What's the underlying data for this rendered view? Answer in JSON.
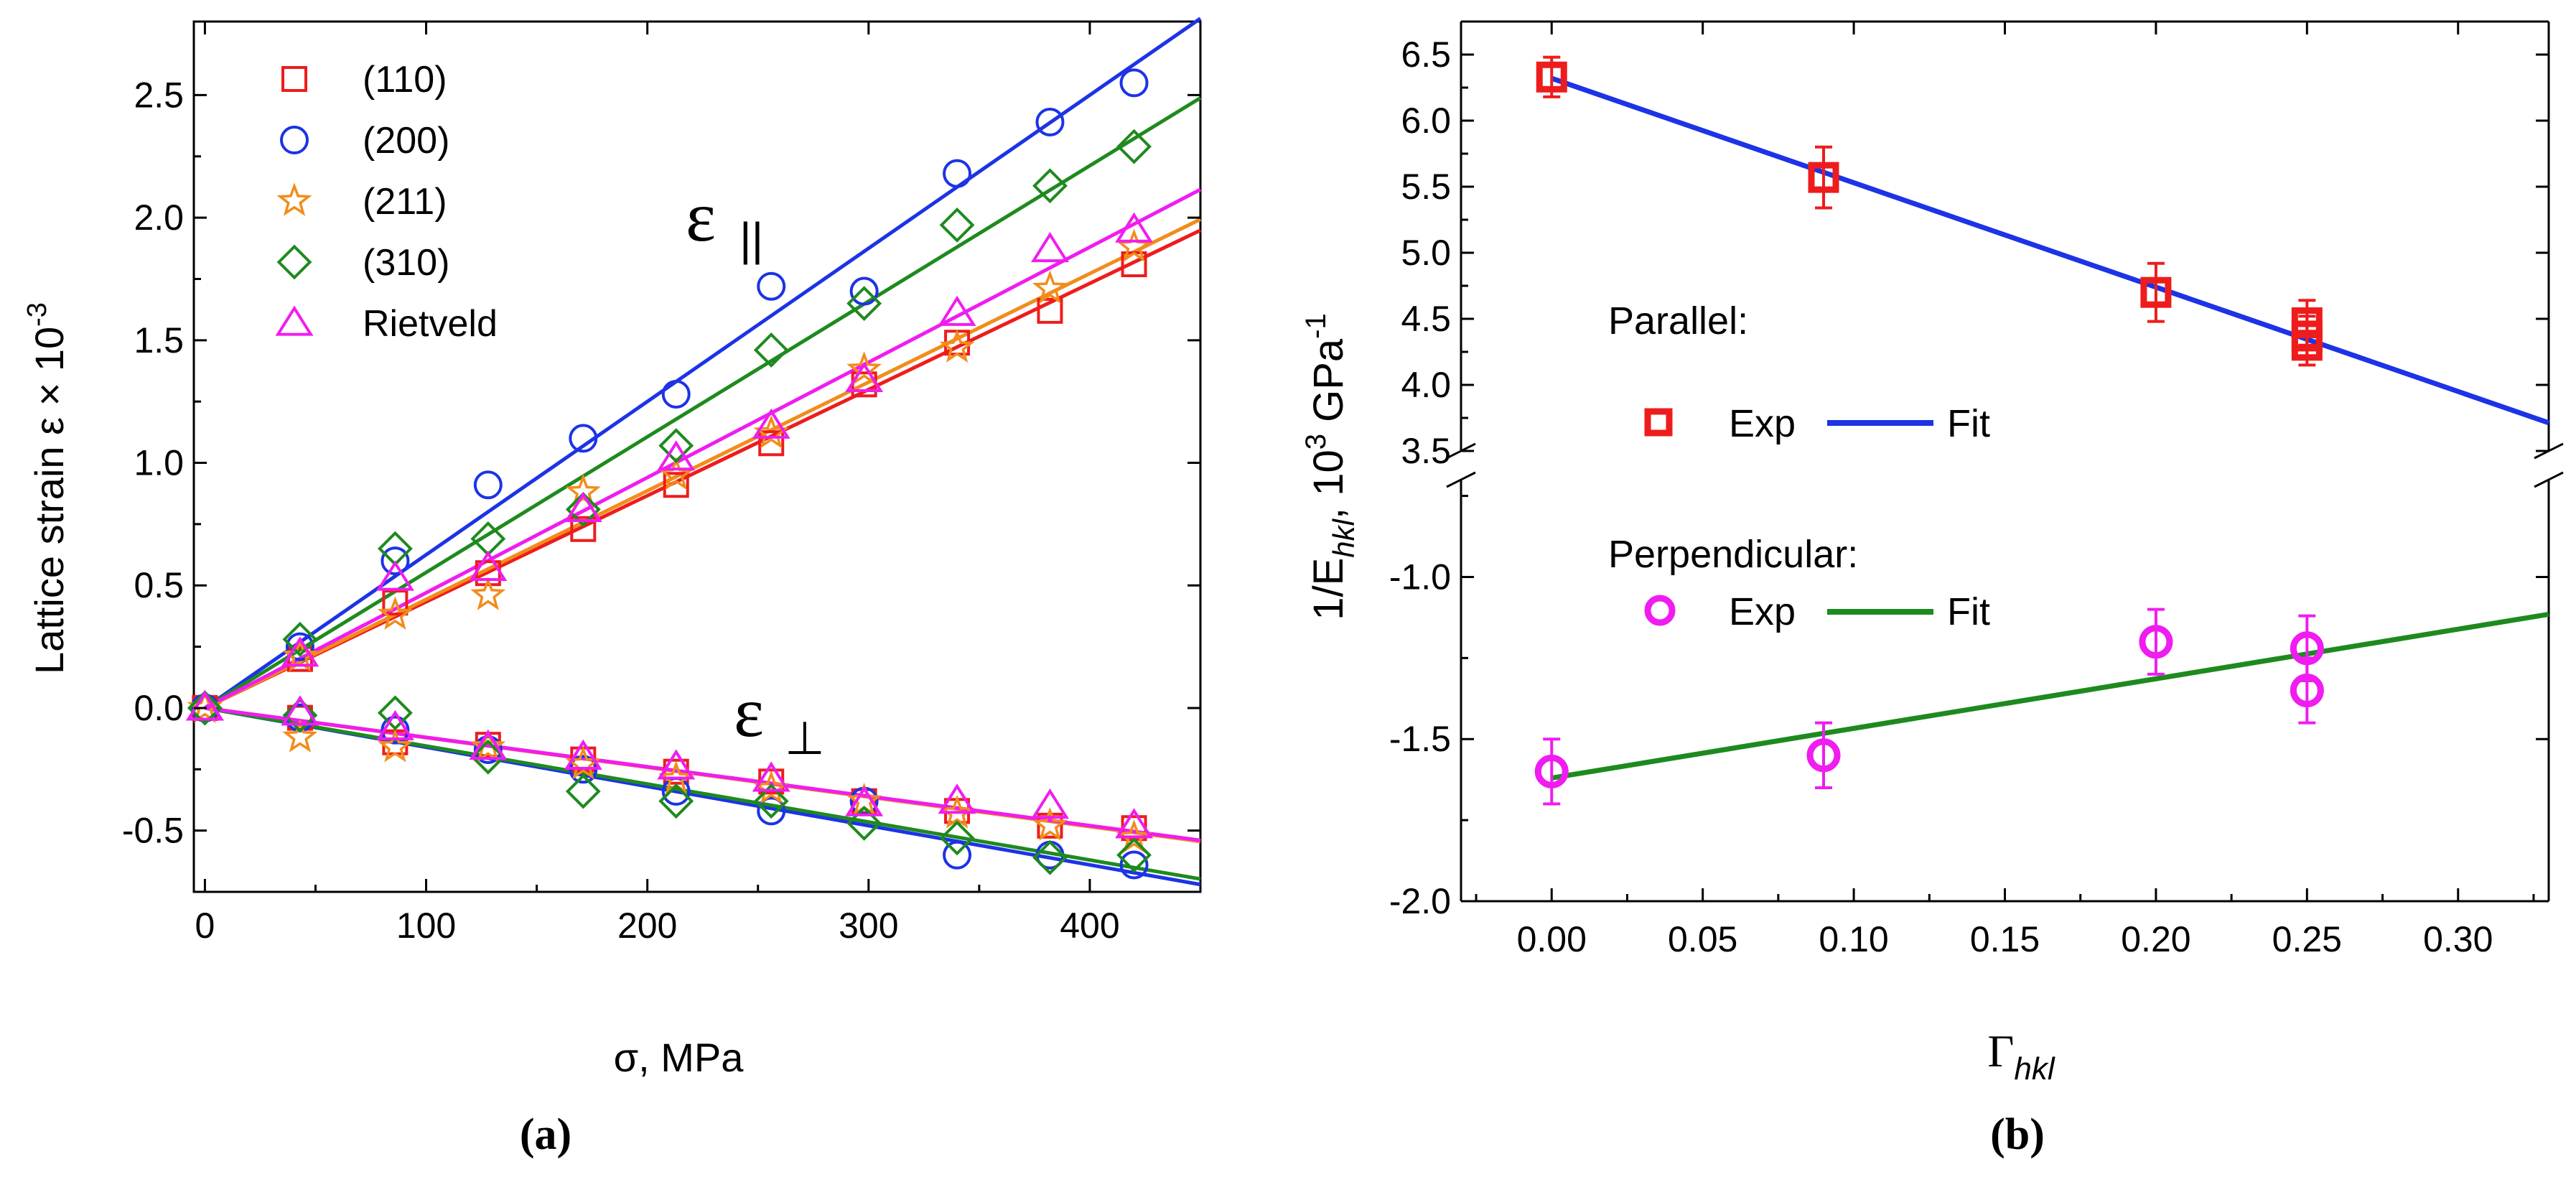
{
  "chart_data": [
    {
      "panel": "a",
      "type": "scatter",
      "panel_label": "(a)",
      "xlabel": "σ, MPa",
      "ylabel": "Lattice strain ε × 10",
      "ylabel_exp": "-3",
      "xlim": [
        -5,
        450
      ],
      "ylim": [
        -0.75,
        2.8
      ],
      "xticks": [
        0,
        100,
        200,
        300,
        400
      ],
      "xtick_labels": [
        "0",
        "100",
        "200",
        "300",
        "400"
      ],
      "yticks": [
        -0.5,
        0.0,
        0.5,
        1.0,
        1.5,
        2.0,
        2.5
      ],
      "ytick_labels": [
        "-0.5",
        "0.0",
        "0.5",
        "1.0",
        "1.5",
        "2.0",
        "2.5"
      ],
      "annotations": {
        "parallel_symbol": "ε",
        "parallel_sub": "||",
        "perp_symbol": "ε",
        "perp_sub": "⊥"
      },
      "x": [
        0,
        43,
        86,
        128,
        171,
        213,
        256,
        298,
        340,
        382,
        420
      ],
      "series": [
        {
          "name": "(110)",
          "marker": "square",
          "color": "#ee1c1c",
          "parallel": [
            0.0,
            0.2,
            0.43,
            0.55,
            0.73,
            0.91,
            1.08,
            1.32,
            1.49,
            1.62,
            1.81
          ],
          "perpendicular": [
            0.0,
            -0.04,
            -0.14,
            -0.15,
            -0.21,
            -0.26,
            -0.3,
            -0.38,
            -0.42,
            -0.48,
            -0.49
          ],
          "fit_parallel_slope": 0.00433,
          "fit_perp_slope": -0.0012
        },
        {
          "name": "(200)",
          "marker": "circle",
          "color": "#1c33e6",
          "parallel": [
            0.0,
            0.25,
            0.6,
            0.91,
            1.1,
            1.28,
            1.72,
            1.7,
            2.18,
            2.39,
            2.55
          ],
          "perpendicular": [
            0.0,
            -0.04,
            -0.09,
            -0.17,
            -0.25,
            -0.34,
            -0.42,
            -0.38,
            -0.6,
            -0.6,
            -0.64
          ],
          "fit_parallel_slope": 0.00625,
          "fit_perp_slope": -0.0016
        },
        {
          "name": "(211)",
          "marker": "star",
          "color": "#f28c1a",
          "parallel": [
            0.0,
            0.21,
            0.38,
            0.46,
            0.88,
            0.95,
            1.12,
            1.38,
            1.47,
            1.71,
            1.88
          ],
          "perpendicular": [
            0.0,
            -0.12,
            -0.16,
            -0.16,
            -0.23,
            -0.29,
            -0.33,
            -0.38,
            -0.43,
            -0.48,
            -0.53
          ],
          "fit_parallel_slope": 0.00443,
          "fit_perp_slope": -0.00121
        },
        {
          "name": "(310)",
          "marker": "diamond",
          "color": "#1e8a1e",
          "parallel": [
            0.0,
            0.28,
            0.65,
            0.69,
            0.81,
            1.07,
            1.46,
            1.65,
            1.97,
            2.13,
            2.29
          ],
          "perpendicular": [
            0.0,
            -0.03,
            -0.02,
            -0.2,
            -0.34,
            -0.38,
            -0.38,
            -0.47,
            -0.53,
            -0.61,
            -0.6
          ],
          "fit_parallel_slope": 0.00553,
          "fit_perp_slope": -0.00155
        },
        {
          "name": "Rietveld",
          "marker": "triangle",
          "color": "#f01cf0",
          "parallel": [
            0.0,
            0.22,
            0.53,
            0.57,
            0.81,
            1.02,
            1.15,
            1.34,
            1.61,
            1.87,
            1.95
          ],
          "perpendicular": [
            0.0,
            -0.02,
            -0.08,
            -0.16,
            -0.2,
            -0.24,
            -0.29,
            -0.39,
            -0.38,
            -0.4,
            -0.48
          ],
          "fit_parallel_slope": 0.0047,
          "fit_perp_slope": -0.0012
        }
      ]
    },
    {
      "panel": "b",
      "type": "scatter",
      "panel_label": "(b)",
      "xlabel": "Γ",
      "xlabel_sub": "hkl",
      "ylabel_prefix": "1/E",
      "ylabel_sub": "hkl",
      "ylabel_mid": ", 10",
      "ylabel_sup1": "3",
      "ylabel_unit": " GPa",
      "ylabel_sup2": "-1",
      "xlim": [
        -0.03,
        0.33
      ],
      "xticks": [
        0.0,
        0.05,
        0.1,
        0.15,
        0.2,
        0.25,
        0.3
      ],
      "xtick_labels": [
        "0.00",
        "0.05",
        "0.10",
        "0.15",
        "0.20",
        "0.25",
        "0.30"
      ],
      "upper_ylim": [
        3.5,
        6.75
      ],
      "upper_yticks": [
        3.5,
        4.0,
        4.5,
        5.0,
        5.5,
        6.0,
        6.5
      ],
      "upper_ytick_labels": [
        "3.5",
        "4.0",
        "4.5",
        "5.0",
        "5.5",
        "6.0",
        "6.5"
      ],
      "lower_ylim": [
        -2.0,
        -0.7
      ],
      "lower_yticks": [
        -2.0,
        -1.5,
        -1.0
      ],
      "lower_ytick_labels": [
        "-2.0",
        "-1.5",
        "-1.0"
      ],
      "parallel": {
        "legend_title": "Parallel:",
        "exp_label": "Exp",
        "fit_label": "Fit",
        "marker_color": "#ee1c1c",
        "fit_color": "#1c33e6",
        "x": [
          0.0,
          0.09,
          0.2,
          0.25,
          0.25,
          0.25
        ],
        "y": [
          6.33,
          5.57,
          4.7,
          4.47,
          4.37,
          4.3
        ],
        "err": [
          0.15,
          0.23,
          0.22,
          0.17,
          0.15,
          0.15
        ],
        "fit_intercept": 6.32,
        "fit_slope": -7.9
      },
      "perpendicular": {
        "legend_title": "Perpendicular:",
        "exp_label": "Exp",
        "fit_label": "Fit",
        "marker_color": "#f01cf0",
        "fit_color": "#1e8a1e",
        "x": [
          0.0,
          0.09,
          0.2,
          0.25,
          0.25
        ],
        "y": [
          -1.6,
          -1.55,
          -1.2,
          -1.22,
          -1.35
        ],
        "err": [
          0.1,
          0.1,
          0.1,
          0.1,
          0.1
        ],
        "fit_intercept": -1.62,
        "fit_slope": 1.53
      }
    }
  ]
}
